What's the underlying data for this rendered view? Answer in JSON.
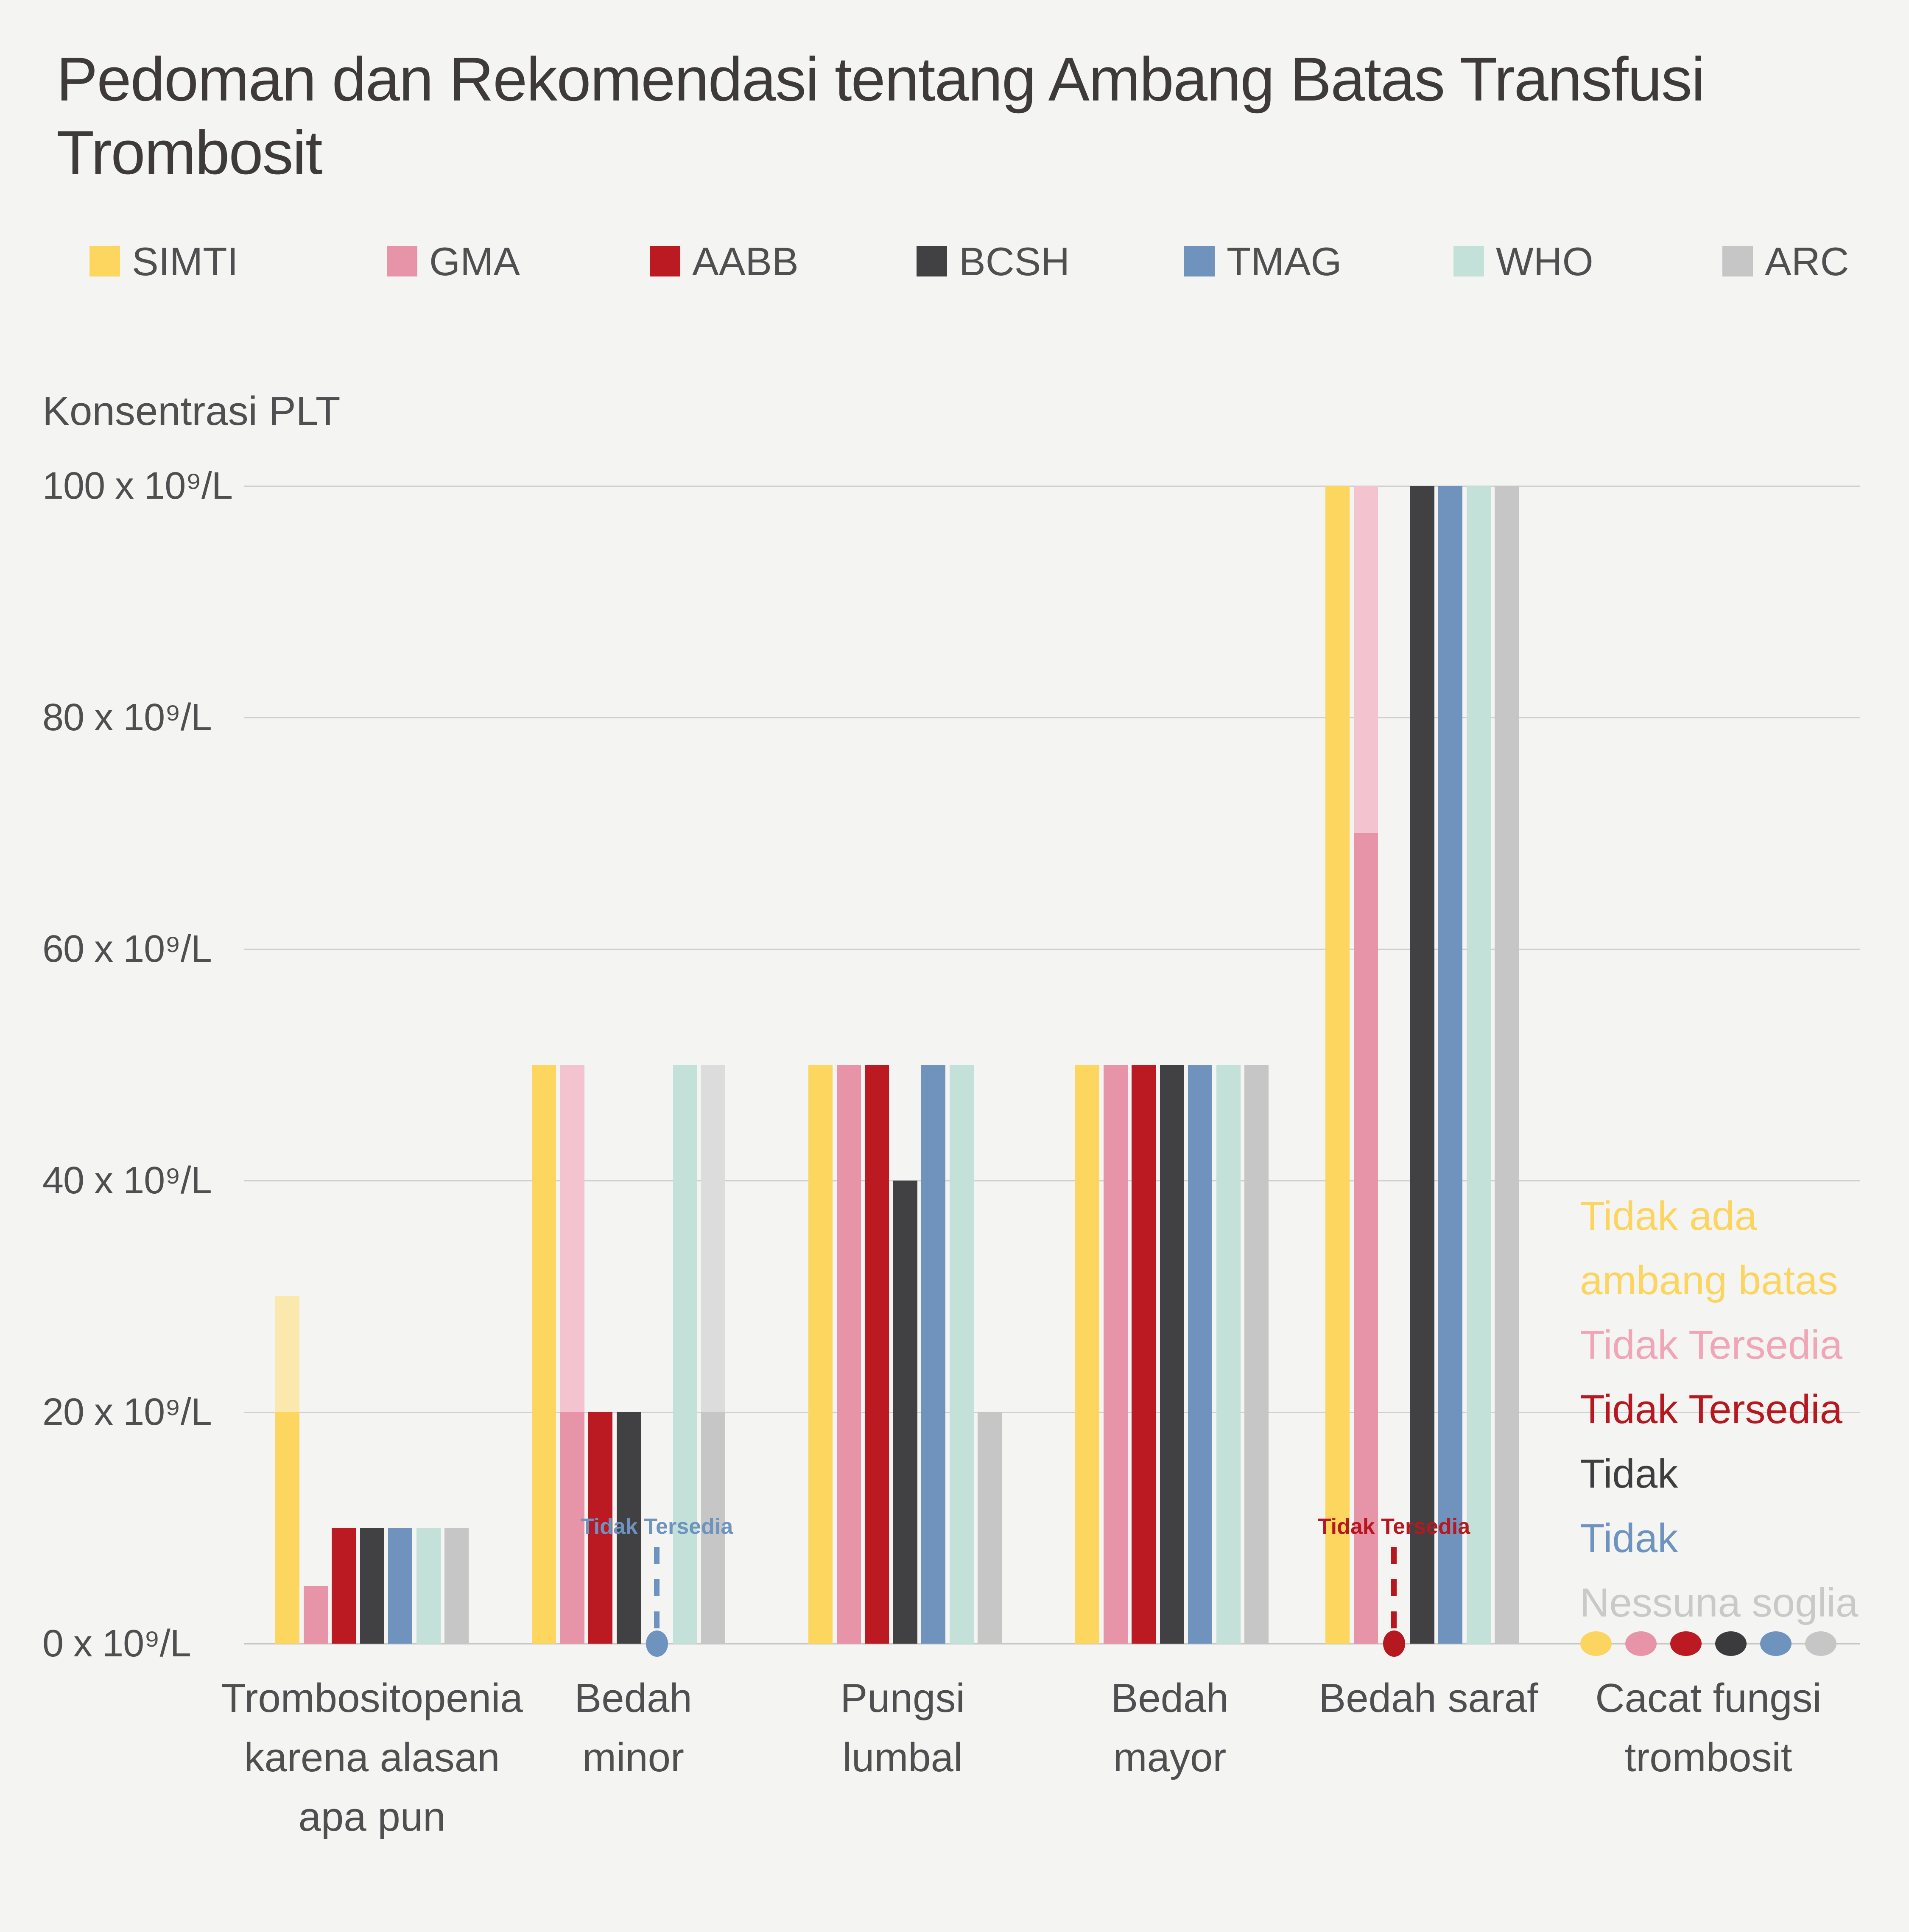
{
  "title": {
    "lines": [
      "Pedoman dan Rekomendasi tentang Ambang Batas Transfusi",
      "Trombosit"
    ]
  },
  "legend": {
    "items": [
      {
        "label": "SIMTI",
        "color": "#fcd65f"
      },
      {
        "label": "GMA",
        "color": "#e793a8"
      },
      {
        "label": "AABB",
        "color": "#bb1a22"
      },
      {
        "label": "BCSH",
        "color": "#414144"
      },
      {
        "label": "TMAG",
        "color": "#7093bd"
      },
      {
        "label": "WHO",
        "color": "#c3e1d9"
      },
      {
        "label": "ARC",
        "color": "#c6c6c6"
      }
    ]
  },
  "y_axis": {
    "title": "Konsentrasi PLT",
    "ticks": [
      {
        "value": 100,
        "label": "100 x 10⁹/L"
      },
      {
        "value": 80,
        "label": "80 x 10⁹/L"
      },
      {
        "value": 60,
        "label": "60 x 10⁹/L"
      },
      {
        "value": 40,
        "label": "40 x 10⁹/L"
      },
      {
        "value": 20,
        "label": "20 x 10⁹/L"
      },
      {
        "value": 0,
        "label": "0 x 10⁹/L"
      }
    ]
  },
  "chart_data": {
    "type": "bar",
    "unit": "x 10⁹/L",
    "ylim": [
      0,
      100
    ],
    "grid": true,
    "categories": [
      {
        "label_lines": [
          "Trombositopenia",
          "karena alasan",
          "apa pun"
        ]
      },
      {
        "label_lines": [
          "Bedah",
          "minor"
        ]
      },
      {
        "label_lines": [
          "Pungsi",
          "lumbal"
        ]
      },
      {
        "label_lines": [
          "Bedah",
          "mayor"
        ]
      },
      {
        "label_lines": [
          "Bedah saraf"
        ]
      },
      {
        "label_lines": [
          "Cacat fungsi",
          "trombosit"
        ]
      }
    ],
    "series": [
      {
        "name": "SIMTI",
        "color": "#fcd65f",
        "light_color": "#fbe8ac",
        "values": [
          {
            "solid": 20,
            "light": 30
          },
          {
            "solid": 50
          },
          {
            "solid": 50
          },
          {
            "solid": 50
          },
          {
            "solid": 100
          },
          null
        ]
      },
      {
        "name": "GMA",
        "color": "#e793a8",
        "light_color": "#f3c3d0",
        "values": [
          {
            "solid": 5
          },
          {
            "solid": 20,
            "light": 50
          },
          {
            "solid": 50
          },
          {
            "solid": 50
          },
          {
            "solid": 70,
            "light": 100
          },
          null
        ]
      },
      {
        "name": "AABB",
        "color": "#bb1a22",
        "values": [
          {
            "solid": 10
          },
          {
            "solid": 20
          },
          {
            "solid": 50
          },
          {
            "solid": 50
          },
          null,
          null
        ]
      },
      {
        "name": "BCSH",
        "color": "#414144",
        "values": [
          {
            "solid": 10
          },
          {
            "solid": 20
          },
          {
            "solid": 40
          },
          {
            "solid": 50
          },
          {
            "solid": 100
          },
          null
        ]
      },
      {
        "name": "TMAG",
        "color": "#7093bd",
        "values": [
          {
            "solid": 10
          },
          null,
          {
            "solid": 50
          },
          {
            "solid": 50
          },
          {
            "solid": 100
          },
          null
        ]
      },
      {
        "name": "WHO",
        "color": "#c3e1d9",
        "values": [
          {
            "solid": 10
          },
          {
            "solid": 50
          },
          {
            "solid": 50
          },
          {
            "solid": 50
          },
          {
            "solid": 100
          },
          null
        ]
      },
      {
        "name": "ARC",
        "color": "#c6c6c6",
        "light_color": "#dcdcdc",
        "values": [
          {
            "solid": 10
          },
          {
            "solid": 20,
            "light": 50
          },
          {
            "solid": 20
          },
          {
            "solid": 50
          },
          {
            "solid": 100
          },
          null
        ]
      }
    ],
    "na_markers": [
      {
        "category": 1,
        "series": "TMAG",
        "label": "Tidak Tersedia",
        "color": "#6e93be"
      },
      {
        "category": 4,
        "series": "AABB",
        "label": "Tidak Tersedia",
        "color": "#b5191f"
      }
    ],
    "last_category_annotations": {
      "category": 5,
      "lines": [
        {
          "series": "SIMTI",
          "text": "Tidak ada",
          "color": "#fbd55f"
        },
        {
          "series": "SIMTI",
          "text": "ambang batas",
          "color": "#fbd55f"
        },
        {
          "series": "GMA",
          "text": "Tidak Tersedia",
          "color": "#f0a6b6"
        },
        {
          "series": "AABB",
          "text": "Tidak Tersedia",
          "color": "#b5191f"
        },
        {
          "series": "BCSH",
          "text": "Tidak",
          "color": "#3e3e40"
        },
        {
          "series": "TMAG",
          "text": "Tidak",
          "color": "#6e93be"
        },
        {
          "series": "ARC",
          "text": "Nessuna soglia",
          "color": "#c9c9c9"
        }
      ],
      "dots": [
        {
          "series": "SIMTI",
          "color": "#fbd55f"
        },
        {
          "series": "GMA",
          "color": "#e793a8"
        },
        {
          "series": "AABB",
          "color": "#bb1a22"
        },
        {
          "series": "BCSH",
          "color": "#3b3b3d"
        },
        {
          "series": "TMAG",
          "color": "#6e93be"
        },
        {
          "series": "ARC",
          "color": "#c6c6c6"
        }
      ]
    }
  },
  "colors": {
    "background": "#f4f4f2",
    "title_text": "#3e3a3a",
    "label_text": "#4f4f51",
    "gridline": "#d0d0d0",
    "axis_line": "#c7c7c7"
  }
}
